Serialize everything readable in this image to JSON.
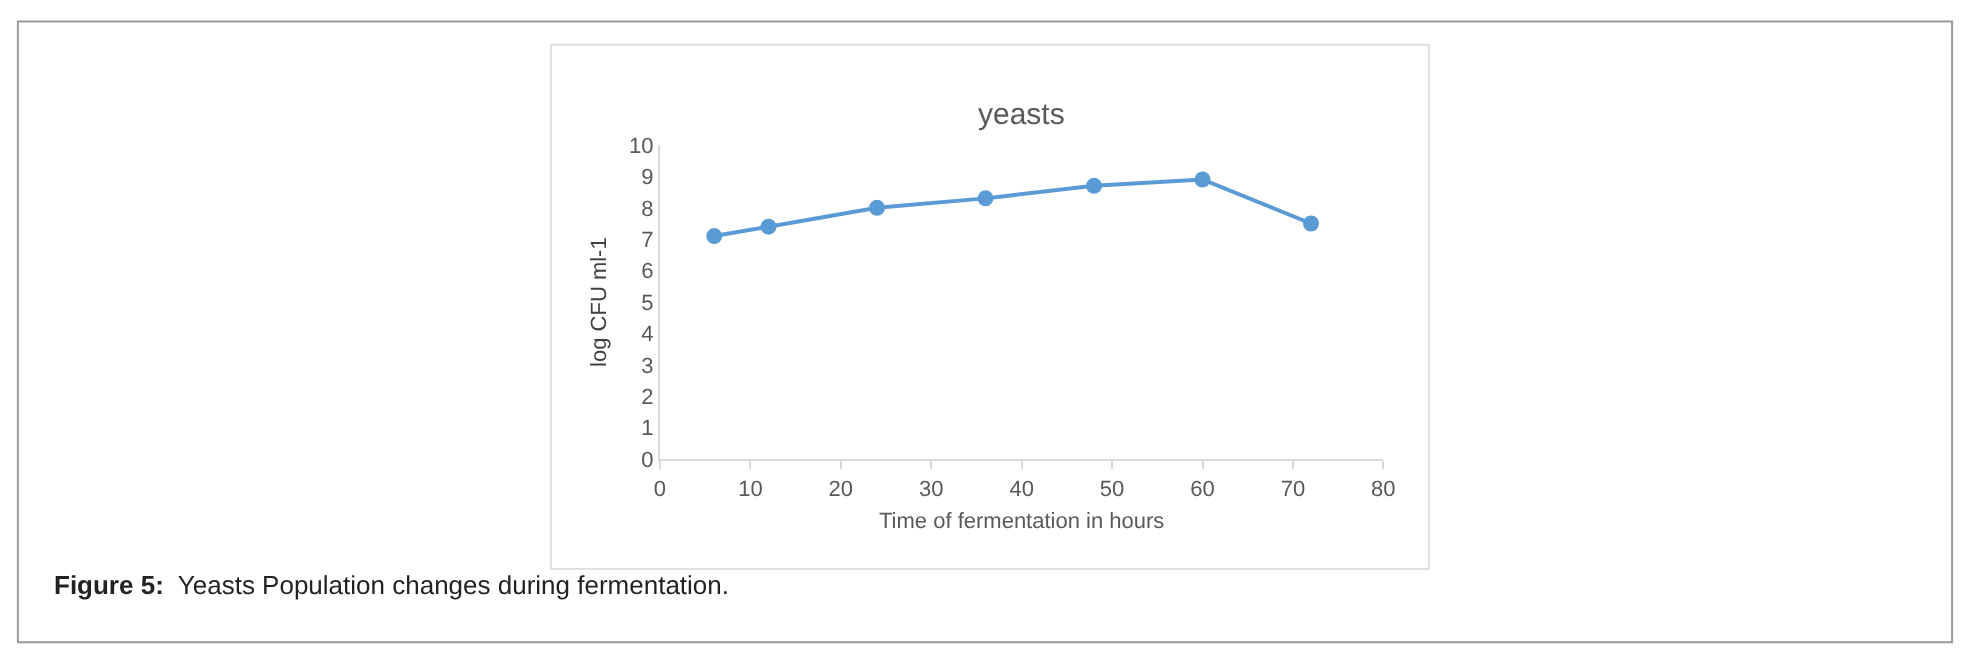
{
  "chart_data": {
    "type": "line",
    "title": "yeasts",
    "xlabel": "Time of fermentation in hours",
    "ylabel": "log CFU ml-1",
    "x": [
      6,
      12,
      24,
      36,
      48,
      60,
      72
    ],
    "series": [
      {
        "color": "#5b9bd5",
        "values": [
          7.1,
          7.4,
          8.0,
          8.3,
          8.7,
          8.9,
          7.5
        ]
      }
    ],
    "xlim": [
      0,
      80
    ],
    "xticks": [
      0,
      10,
      20,
      30,
      40,
      50,
      60,
      70,
      80
    ],
    "ylim": [
      0,
      10
    ],
    "yticks": [
      0,
      1,
      2,
      3,
      4,
      5,
      6,
      7,
      8,
      9,
      10
    ],
    "grid": false,
    "marker": "circle",
    "line_style": "solid",
    "annotations": [
      "Figure 5:  Yeasts Population changes during fermentation."
    ]
  }
}
